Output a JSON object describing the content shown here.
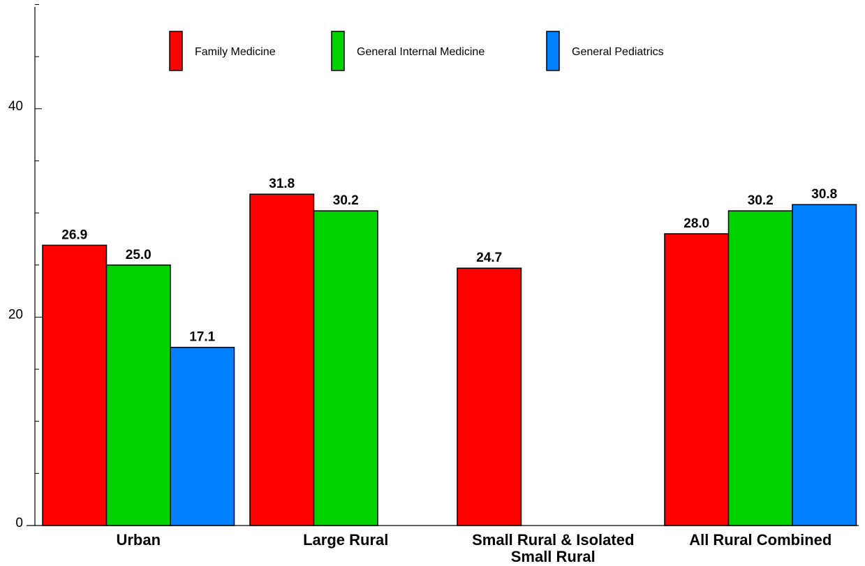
{
  "chart_data": {
    "type": "bar",
    "title": "",
    "xlabel": "",
    "ylabel": "",
    "ylim": [
      0,
      50
    ],
    "yticks": [
      0,
      20,
      40
    ],
    "grid": false,
    "legend_position": "top",
    "categories": [
      "Urban",
      "Large Rural",
      "Small Rural & Isolated\nSmall Rural",
      "All Rural Combined"
    ],
    "series": [
      {
        "name": "Family Medicine",
        "color": "#ff0000",
        "values": [
          26.9,
          31.8,
          24.7,
          28.0
        ],
        "labels": [
          "26.9",
          "31.8",
          "24.7",
          "28.0"
        ]
      },
      {
        "name": "General Internal Medicine",
        "color": "#00d200",
        "values": [
          25.0,
          30.2,
          null,
          30.2
        ],
        "labels": [
          "25.0",
          "30.2",
          null,
          "30.2"
        ]
      },
      {
        "name": "General Pediatrics",
        "color": "#0080ff",
        "values": [
          17.1,
          null,
          null,
          30.8
        ],
        "labels": [
          "17.1",
          null,
          null,
          "30.8"
        ]
      }
    ]
  }
}
